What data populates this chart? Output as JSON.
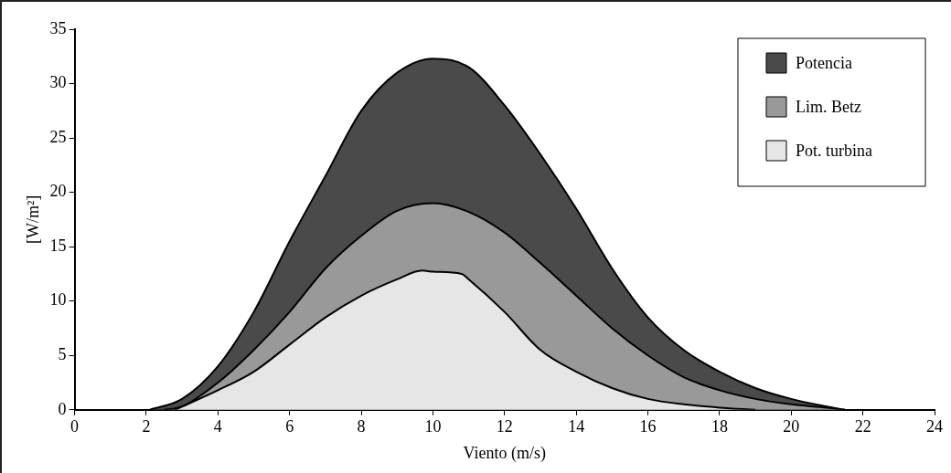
{
  "chart_data": {
    "type": "area",
    "xlabel": "Viento (m/s)",
    "ylabel": "[W/m²]",
    "xlim": [
      0,
      24
    ],
    "xticks": [
      0,
      2,
      4,
      6,
      8,
      10,
      12,
      14,
      16,
      18,
      20,
      22,
      24
    ],
    "ylim": [
      0,
      35
    ],
    "yticks": [
      0,
      5,
      10,
      15,
      20,
      25,
      30,
      35
    ],
    "grid": false,
    "legend": "top right",
    "series": [
      {
        "name": "Potencia",
        "color": "#4a4a4a",
        "x": [
          2.1,
          3,
          4,
          5,
          6,
          7,
          8,
          9,
          10,
          11,
          12,
          13,
          14,
          15,
          16,
          17,
          18,
          19,
          20,
          21,
          21.5
        ],
        "values": [
          0,
          1,
          4,
          9,
          15.5,
          21.5,
          27.5,
          31,
          32.3,
          31.5,
          28,
          23.5,
          18.5,
          13,
          8.5,
          5.5,
          3.5,
          2,
          1,
          0.3,
          0
        ]
      },
      {
        "name": "Lim. Betz",
        "color": "#999999",
        "x": [
          2.5,
          3,
          4,
          5,
          6,
          7,
          8,
          9,
          10,
          11,
          12,
          13,
          14,
          15,
          16,
          17,
          18,
          19,
          20,
          21,
          21.5
        ],
        "values": [
          0,
          0.3,
          2.5,
          5.5,
          9,
          13,
          16,
          18.3,
          19,
          18.2,
          16.3,
          13.5,
          10.5,
          7.5,
          5,
          3,
          1.8,
          1,
          0.5,
          0.2,
          0
        ]
      },
      {
        "name": "Pot. turbina",
        "color": "#e6e6e6",
        "x": [
          2.8,
          4,
          5,
          6,
          7,
          8,
          9,
          9.7,
          10,
          10.8,
          11,
          12,
          13,
          14,
          15,
          16,
          17,
          18,
          19
        ],
        "values": [
          0,
          1.8,
          3.5,
          6,
          8.5,
          10.5,
          12,
          12.8,
          12.7,
          12.5,
          12,
          9,
          5.5,
          3.5,
          2,
          1,
          0.5,
          0.2,
          0
        ]
      }
    ]
  }
}
